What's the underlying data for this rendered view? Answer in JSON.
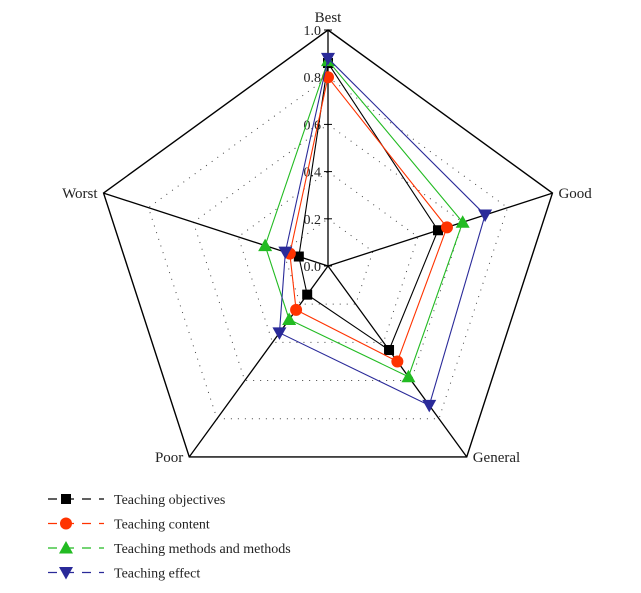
{
  "chart_data": {
    "type": "radar",
    "title": "",
    "axes": [
      "Best",
      "Good",
      "General",
      "Poor",
      "Worst"
    ],
    "range": [
      0,
      1.0
    ],
    "ticks": [
      "0.0",
      "0.2",
      "0.4",
      "0.6",
      "0.8",
      "1.0"
    ],
    "grid": true,
    "legend_position": "bottom-left",
    "series": [
      {
        "name": "Teaching objectives",
        "color": "#000000",
        "marker": "square",
        "values": [
          0.86,
          0.49,
          0.44,
          0.15,
          0.13
        ]
      },
      {
        "name": "Teaching content",
        "color": "#ff3300",
        "marker": "circle",
        "values": [
          0.8,
          0.53,
          0.5,
          0.23,
          0.17
        ]
      },
      {
        "name": "Teaching methods and methods",
        "color": "#22bb22",
        "marker": "triangle-up",
        "values": [
          0.87,
          0.6,
          0.58,
          0.28,
          0.28
        ]
      },
      {
        "name": "Teaching effect",
        "color": "#2a2a99",
        "marker": "triangle-down",
        "values": [
          0.88,
          0.7,
          0.73,
          0.35,
          0.19
        ]
      }
    ]
  }
}
